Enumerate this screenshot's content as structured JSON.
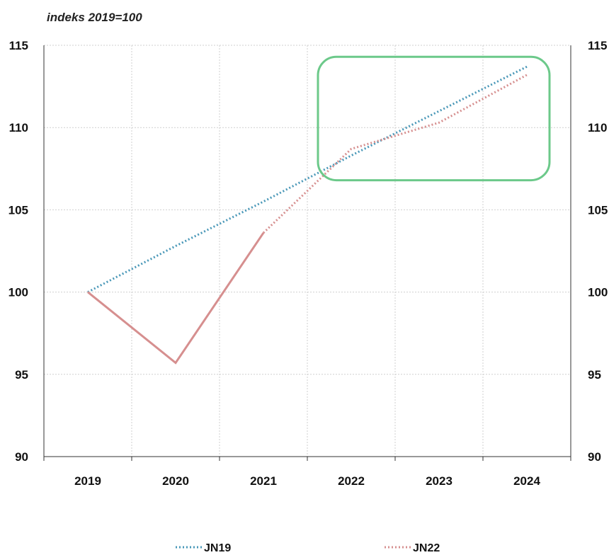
{
  "chart_data": {
    "type": "line",
    "subtitle": "indeks 2019=100",
    "categories": [
      "2019",
      "2020",
      "2021",
      "2022",
      "2023",
      "2024"
    ],
    "y_ticks": [
      "90",
      "95",
      "100",
      "105",
      "110",
      "115"
    ],
    "ylim": [
      90,
      115
    ],
    "grid": true,
    "secondary_y_axis": true,
    "legend_placement": "bottom",
    "series": [
      {
        "name": "JN19",
        "color": "#4a98b8",
        "style": "dotted",
        "values": [
          100.0,
          102.8,
          105.5,
          108.3,
          111.0,
          113.7
        ]
      },
      {
        "name": "JN22",
        "color": "#d68f8f",
        "style": "solid-then-dotted",
        "solid_until": "2021",
        "values": [
          100.0,
          95.7,
          103.6,
          108.7,
          110.3,
          113.2
        ]
      }
    ],
    "highlight_box": {
      "from_category": "2022",
      "to_category": "2024",
      "y_range": [
        106.8,
        114.3
      ],
      "color": "#6cc98a"
    }
  }
}
